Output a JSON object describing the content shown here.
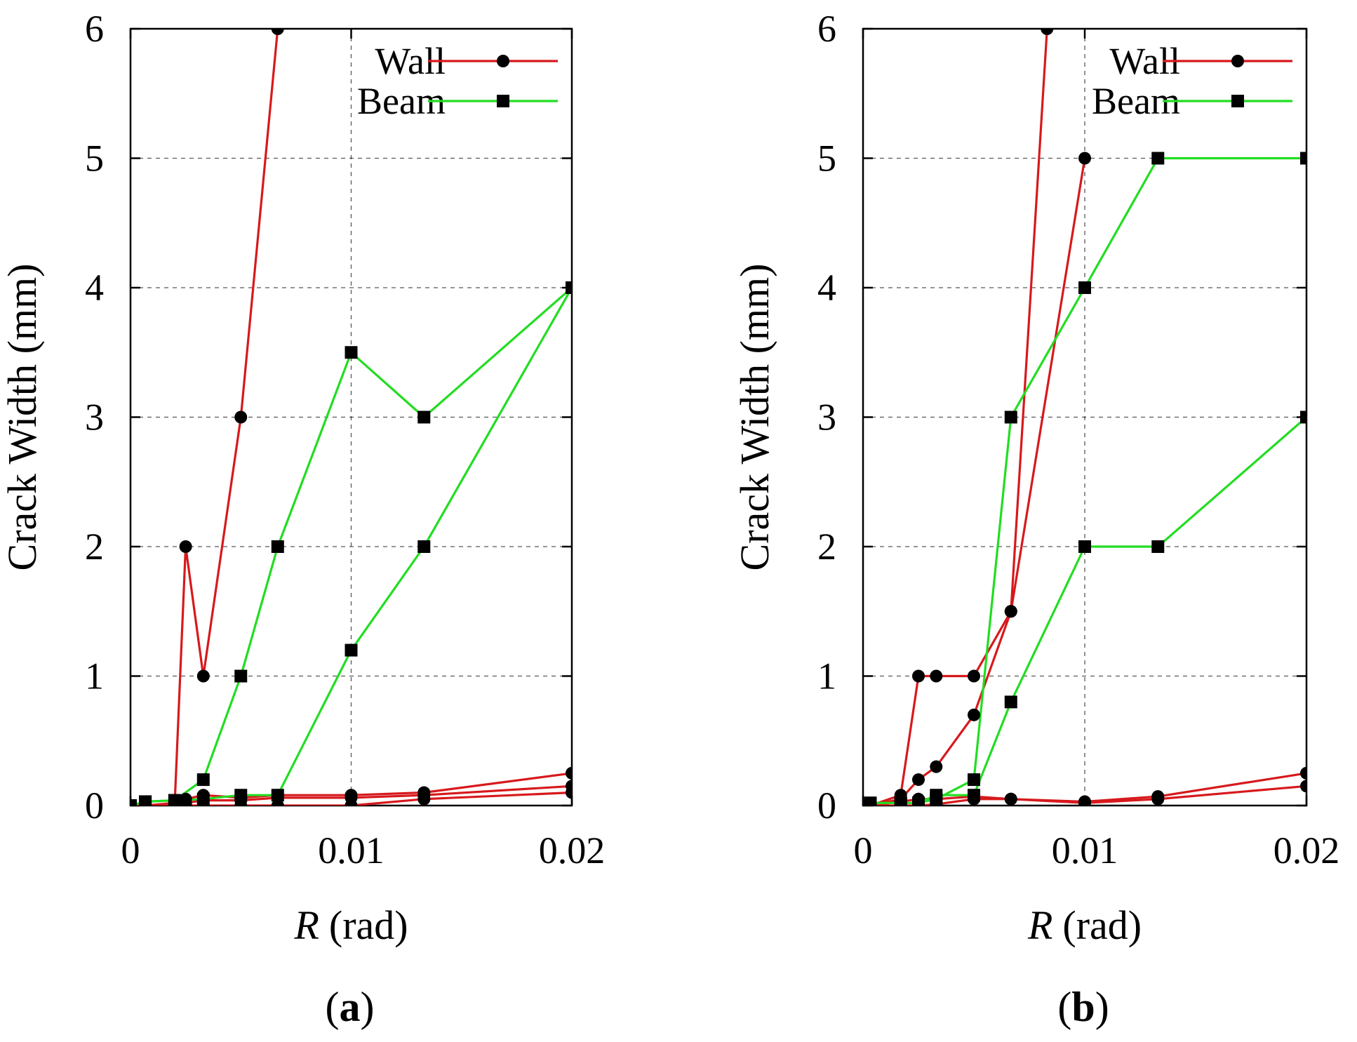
{
  "chart_data": [
    {
      "type": "line",
      "panel_label": "a",
      "xlabel_var": "R",
      "xlabel_unit": "(rad)",
      "ylabel": "Crack Width (mm)",
      "xlim": [
        0,
        0.02
      ],
      "ylim": [
        0,
        6
      ],
      "xticks": [
        0,
        0.01,
        0.02
      ],
      "xtick_labels": [
        "0",
        "0.01",
        "0.02"
      ],
      "yticks": [
        0,
        1,
        2,
        3,
        4,
        5,
        6
      ],
      "ytick_labels": [
        "0",
        "1",
        "2",
        "3",
        "4",
        "5",
        "6"
      ],
      "grid": true,
      "legend": {
        "position": "top-right",
        "entries": [
          {
            "label": "Wall",
            "color": "#d7191c",
            "marker": "circle"
          },
          {
            "label": "Beam",
            "color": "#22dd22",
            "marker": "square"
          }
        ]
      },
      "series": [
        {
          "name": "Wall",
          "color": "#d7191c",
          "marker": "circle",
          "x": [
            0,
            0.00067,
            0.002,
            0.0025,
            0.0033,
            0.005,
            0.00667
          ],
          "y": [
            0,
            0,
            0,
            2,
            1,
            3,
            6
          ]
        },
        {
          "name": "Wall",
          "color": "#d7191c",
          "marker": "circle",
          "x": [
            0,
            0.00067,
            0.002,
            0.0025,
            0.0033,
            0.005,
            0.00667,
            0.01,
            0.0133,
            0.02
          ],
          "y": [
            0,
            0,
            0.02,
            0.05,
            0.08,
            0.06,
            0.08,
            0.08,
            0.1,
            0.25
          ]
        },
        {
          "name": "Wall",
          "color": "#d7191c",
          "marker": "circle",
          "x": [
            0,
            0.00067,
            0.002,
            0.0025,
            0.0033,
            0.005,
            0.00667,
            0.01,
            0.0133,
            0.02
          ],
          "y": [
            0,
            0,
            0,
            0.02,
            0.04,
            0.04,
            0.06,
            0.06,
            0.08,
            0.15
          ]
        },
        {
          "name": "Wall",
          "color": "#d7191c",
          "marker": "circle",
          "x": [
            0,
            0.00067,
            0.002,
            0.0025,
            0.0033,
            0.005,
            0.00667,
            0.01,
            0.0133,
            0.02
          ],
          "y": [
            0,
            0,
            0,
            0,
            0,
            0,
            0,
            0,
            0.05,
            0.1
          ]
        },
        {
          "name": "Beam",
          "color": "#22dd22",
          "marker": "square",
          "x": [
            0,
            0.00067,
            0.002,
            0.0033,
            0.005,
            0.00667,
            0.01,
            0.0133,
            0.02
          ],
          "y": [
            0,
            0.03,
            0.04,
            0.2,
            1,
            2,
            3.5,
            3,
            4
          ]
        },
        {
          "name": "Beam",
          "color": "#22dd22",
          "marker": "square",
          "x": [
            0,
            0.00067,
            0.002,
            0.0033,
            0.005,
            0.00667,
            0.01,
            0.0133,
            0.02
          ],
          "y": [
            0,
            0.03,
            0.04,
            0.05,
            0.08,
            0.08,
            1.2,
            2,
            4
          ]
        }
      ]
    },
    {
      "type": "line",
      "panel_label": "b",
      "xlabel_var": "R",
      "xlabel_unit": "(rad)",
      "ylabel": "Crack Width (mm)",
      "xlim": [
        0,
        0.02
      ],
      "ylim": [
        0,
        6
      ],
      "xticks": [
        0,
        0.01,
        0.02
      ],
      "xtick_labels": [
        "0",
        "0.01",
        "0.02"
      ],
      "yticks": [
        0,
        1,
        2,
        3,
        4,
        5,
        6
      ],
      "ytick_labels": [
        "0",
        "1",
        "2",
        "3",
        "4",
        "5",
        "6"
      ],
      "grid": true,
      "legend": {
        "position": "top-right",
        "entries": [
          {
            "label": "Wall",
            "color": "#d7191c",
            "marker": "circle"
          },
          {
            "label": "Beam",
            "color": "#22dd22",
            "marker": "square"
          }
        ]
      },
      "series": [
        {
          "name": "Wall",
          "color": "#d7191c",
          "marker": "circle",
          "x": [
            0,
            0.00033,
            0.0017,
            0.0025,
            0.0033,
            0.005,
            0.00667,
            0.01,
            0.0133,
            0.02
          ],
          "y": [
            0,
            0,
            0.03,
            0.05,
            0.05,
            0.07,
            0.05,
            0.03,
            0.07,
            0.25
          ]
        },
        {
          "name": "Wall",
          "color": "#d7191c",
          "marker": "circle",
          "x": [
            0,
            0.00033,
            0.0017,
            0.0025,
            0.0033,
            0.005,
            0.00667,
            0.01,
            0.0133,
            0.02
          ],
          "y": [
            0,
            0,
            0,
            0,
            0.01,
            0.05,
            0.05,
            0.02,
            0.05,
            0.15
          ]
        },
        {
          "name": "Wall",
          "color": "#d7191c",
          "marker": "circle",
          "x": [
            0,
            0.00033,
            0.0017,
            0.0025,
            0.0033,
            0.005,
            0.00667,
            0.0083
          ],
          "y": [
            0,
            0,
            0.05,
            0.2,
            0.3,
            0.7,
            1.5,
            6
          ]
        },
        {
          "name": "Wall",
          "color": "#d7191c",
          "marker": "circle",
          "x": [
            0,
            0.00033,
            0.0017,
            0.0025,
            0.0033,
            0.005,
            0.00667,
            0.01
          ],
          "y": [
            0,
            0,
            0.08,
            1,
            1,
            1,
            1.5,
            5
          ]
        },
        {
          "name": "Beam",
          "color": "#22dd22",
          "marker": "square",
          "x": [
            0,
            0.00033,
            0.0017,
            0.0025,
            0.0033,
            0.005,
            0.00667,
            0.01,
            0.0133,
            0.02
          ],
          "y": [
            0,
            0.02,
            0.02,
            0.02,
            0.05,
            0.2,
            3,
            4,
            5,
            5
          ]
        },
        {
          "name": "Beam",
          "color": "#22dd22",
          "marker": "square",
          "x": [
            0,
            0.00033,
            0.0017,
            0.0025,
            0.0033,
            0.005,
            0.00667,
            0.01,
            0.0133,
            0.02
          ],
          "y": [
            0,
            0.02,
            0.02,
            0.02,
            0.08,
            0.08,
            0.8,
            2,
            2,
            3
          ]
        }
      ]
    }
  ]
}
